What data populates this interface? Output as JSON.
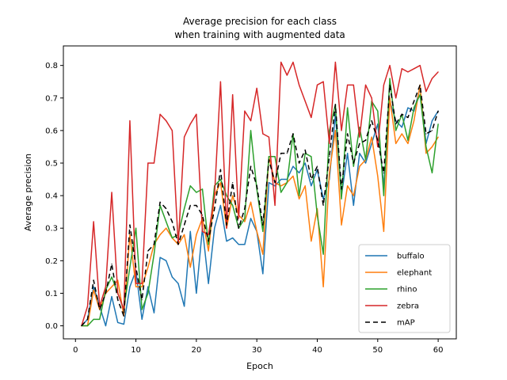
{
  "chart_data": {
    "type": "line",
    "title_line1": "Average precision for each class",
    "title_line2": "when training with augmented data",
    "xlabel": "Epoch",
    "ylabel": "Average precision",
    "xlim": [
      -2,
      63
    ],
    "ylim": [
      -0.04,
      0.86
    ],
    "xticks": [
      0,
      10,
      20,
      30,
      40,
      50,
      60
    ],
    "yticks": [
      0.0,
      0.1,
      0.2,
      0.3,
      0.4,
      0.5,
      0.6,
      0.7,
      0.8
    ],
    "ytick_labels": [
      "0.0",
      "0.1",
      "0.2",
      "0.3",
      "0.4",
      "0.5",
      "0.6",
      "0.7",
      "0.8"
    ],
    "grid": false,
    "legend_position": "lower-right",
    "x": [
      1,
      2,
      3,
      4,
      5,
      6,
      7,
      8,
      9,
      10,
      11,
      12,
      13,
      14,
      15,
      16,
      17,
      18,
      19,
      20,
      21,
      22,
      23,
      24,
      25,
      26,
      27,
      28,
      29,
      30,
      31,
      32,
      33,
      34,
      35,
      36,
      37,
      38,
      39,
      40,
      41,
      42,
      43,
      44,
      45,
      46,
      47,
      48,
      49,
      50,
      51,
      52,
      53,
      54,
      55,
      56,
      57,
      58,
      59,
      60
    ],
    "series": [
      {
        "name": "buffalo",
        "color": "#1f77b4",
        "dash": "",
        "values": [
          0.0,
          0.02,
          0.12,
          0.06,
          0.0,
          0.09,
          0.01,
          0.005,
          0.12,
          0.17,
          0.02,
          0.12,
          0.04,
          0.21,
          0.2,
          0.15,
          0.13,
          0.06,
          0.29,
          0.1,
          0.3,
          0.13,
          0.3,
          0.37,
          0.26,
          0.27,
          0.25,
          0.25,
          0.33,
          0.29,
          0.16,
          0.44,
          0.43,
          0.45,
          0.45,
          0.49,
          0.47,
          0.5,
          0.43,
          0.48,
          0.39,
          0.45,
          0.65,
          0.4,
          0.53,
          0.37,
          0.53,
          0.5,
          0.56,
          0.62,
          0.43,
          0.69,
          0.63,
          0.61,
          0.67,
          0.66,
          0.73,
          0.56,
          0.63,
          0.66
        ]
      },
      {
        "name": "elephant",
        "color": "#ff7f0e",
        "dash": "",
        "values": [
          0.0,
          0.0,
          0.11,
          0.05,
          0.1,
          0.12,
          0.14,
          0.03,
          0.28,
          0.12,
          0.12,
          0.18,
          0.25,
          0.28,
          0.3,
          0.27,
          0.25,
          0.28,
          0.18,
          0.28,
          0.33,
          0.23,
          0.4,
          0.44,
          0.3,
          0.4,
          0.34,
          0.32,
          0.38,
          0.29,
          0.22,
          0.52,
          0.44,
          0.43,
          0.44,
          0.46,
          0.39,
          0.43,
          0.26,
          0.36,
          0.12,
          0.47,
          0.6,
          0.31,
          0.43,
          0.4,
          0.49,
          0.51,
          0.58,
          0.46,
          0.29,
          0.7,
          0.56,
          0.59,
          0.56,
          0.63,
          0.74,
          0.53,
          0.55,
          0.58
        ]
      },
      {
        "name": "rhino",
        "color": "#2ca02c",
        "dash": "",
        "values": [
          0.0,
          0.0,
          0.02,
          0.02,
          0.11,
          0.15,
          0.1,
          0.05,
          0.18,
          0.3,
          0.05,
          0.1,
          0.22,
          0.37,
          0.32,
          0.27,
          0.28,
          0.36,
          0.43,
          0.41,
          0.42,
          0.25,
          0.43,
          0.45,
          0.4,
          0.37,
          0.3,
          0.33,
          0.6,
          0.42,
          0.29,
          0.52,
          0.52,
          0.41,
          0.44,
          0.59,
          0.4,
          0.53,
          0.52,
          0.34,
          0.22,
          0.6,
          0.68,
          0.39,
          0.67,
          0.49,
          0.61,
          0.51,
          0.69,
          0.66,
          0.4,
          0.76,
          0.6,
          0.65,
          0.57,
          0.67,
          0.71,
          0.55,
          0.47,
          0.62
        ]
      },
      {
        "name": "zebra",
        "color": "#d62728",
        "dash": "",
        "values": [
          0.0,
          0.06,
          0.32,
          0.06,
          0.12,
          0.41,
          0.1,
          0.05,
          0.63,
          0.13,
          0.13,
          0.5,
          0.5,
          0.65,
          0.63,
          0.6,
          0.25,
          0.58,
          0.62,
          0.65,
          0.29,
          0.28,
          0.4,
          0.75,
          0.3,
          0.71,
          0.33,
          0.66,
          0.63,
          0.73,
          0.59,
          0.58,
          0.37,
          0.81,
          0.77,
          0.81,
          0.74,
          0.69,
          0.64,
          0.74,
          0.75,
          0.56,
          0.81,
          0.6,
          0.74,
          0.74,
          0.58,
          0.74,
          0.7,
          0.55,
          0.74,
          0.8,
          0.7,
          0.79,
          0.78,
          0.79,
          0.8,
          0.72,
          0.76,
          0.78
        ]
      },
      {
        "name": "mAP",
        "color": "#000000",
        "dash": "6,4",
        "values": [
          0.0,
          0.02,
          0.14,
          0.05,
          0.1,
          0.19,
          0.08,
          0.03,
          0.31,
          0.18,
          0.08,
          0.23,
          0.25,
          0.38,
          0.36,
          0.32,
          0.25,
          0.31,
          0.37,
          0.37,
          0.34,
          0.26,
          0.36,
          0.48,
          0.31,
          0.44,
          0.3,
          0.36,
          0.49,
          0.43,
          0.31,
          0.51,
          0.44,
          0.53,
          0.53,
          0.59,
          0.5,
          0.54,
          0.45,
          0.49,
          0.37,
          0.52,
          0.68,
          0.42,
          0.59,
          0.5,
          0.56,
          0.57,
          0.63,
          0.57,
          0.47,
          0.74,
          0.62,
          0.65,
          0.64,
          0.69,
          0.74,
          0.59,
          0.6,
          0.66
        ]
      }
    ]
  }
}
